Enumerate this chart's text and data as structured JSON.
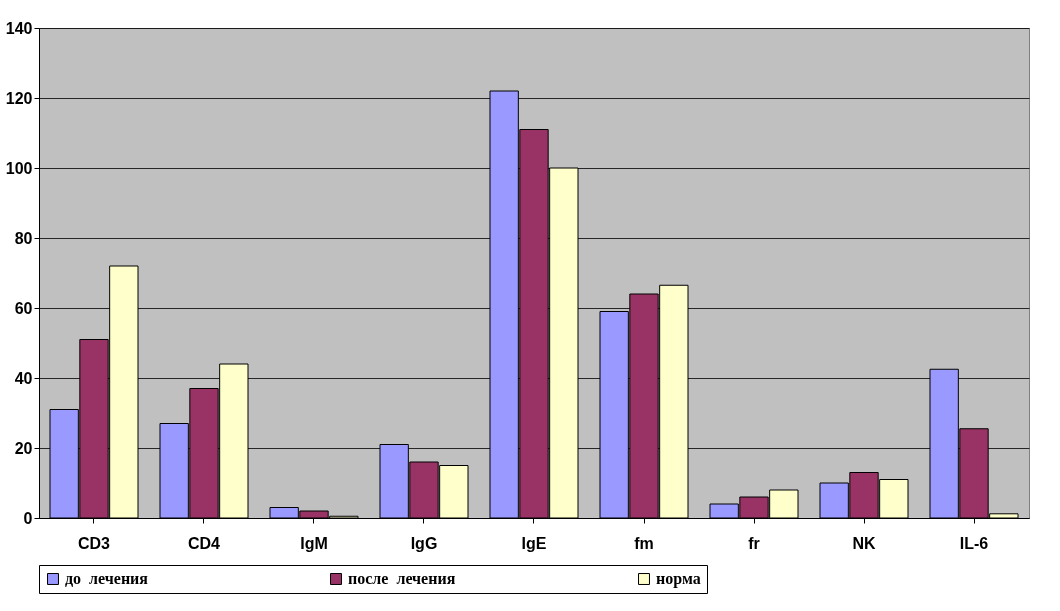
{
  "chart_data": {
    "type": "bar",
    "categories": [
      "CD3",
      "CD4",
      "IgM",
      "IgG",
      "IgE",
      "fm",
      "fr",
      "NK",
      "IL-6"
    ],
    "series": [
      {
        "name": "до  лечения",
        "color": "#9999ff",
        "values": [
          31,
          27,
          3,
          21,
          122,
          59,
          4,
          10,
          42.5
        ]
      },
      {
        "name": "после  лечения",
        "color": "#993366",
        "values": [
          51,
          37,
          2,
          16,
          111,
          64,
          6,
          13,
          25.5
        ]
      },
      {
        "name": "норма",
        "color": "#ffffcc",
        "values": [
          72,
          44,
          0.5,
          15,
          100,
          66.5,
          8,
          11,
          1.2
        ]
      }
    ],
    "ylim": [
      0,
      140
    ],
    "yticks": [
      0,
      20,
      40,
      60,
      80,
      100,
      120,
      140
    ],
    "grid": "y",
    "legend": "bottom"
  }
}
